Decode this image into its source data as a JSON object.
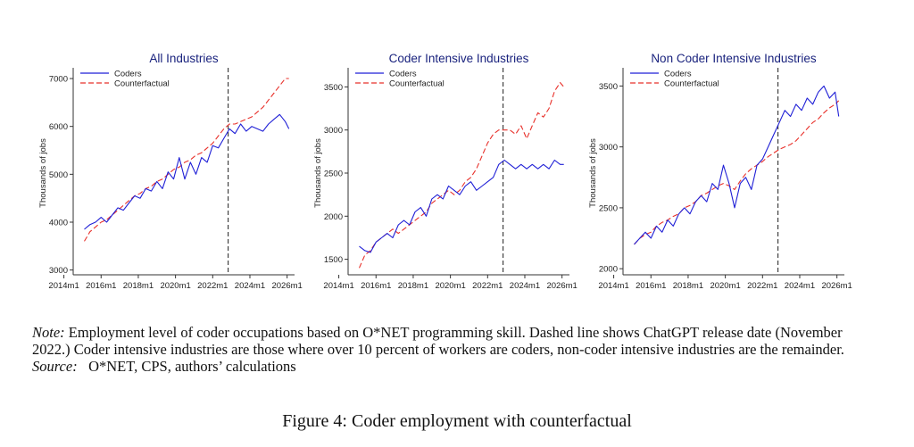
{
  "chart_data": [
    {
      "type": "line",
      "title": "All Industries",
      "ylabel": "Thousands of jobs",
      "xlim": [
        2014.5,
        2026.4
      ],
      "ylim": [
        2900,
        7150
      ],
      "yticks": [
        3000,
        4000,
        5000,
        6000,
        7000
      ],
      "xticks": [
        2014,
        2016,
        2018,
        2020,
        2022,
        2024,
        2026
      ],
      "xticklabels": [
        "2014m1",
        "2016m1",
        "2018m1",
        "2020m1",
        "2022m1",
        "2024m1",
        "2026m1"
      ],
      "vline": 2022.83,
      "legend": "top-left",
      "series": [
        {
          "name": "Coders",
          "color": "#1f1fd6",
          "dash": "",
          "points": [
            [
              2015.1,
              3850
            ],
            [
              2015.4,
              3950
            ],
            [
              2015.7,
              4000
            ],
            [
              2016.0,
              4100
            ],
            [
              2016.3,
              4000
            ],
            [
              2016.6,
              4150
            ],
            [
              2016.9,
              4300
            ],
            [
              2017.2,
              4250
            ],
            [
              2017.5,
              4400
            ],
            [
              2017.8,
              4550
            ],
            [
              2018.1,
              4500
            ],
            [
              2018.4,
              4700
            ],
            [
              2018.7,
              4650
            ],
            [
              2019.0,
              4850
            ],
            [
              2019.3,
              4700
            ],
            [
              2019.6,
              5050
            ],
            [
              2019.9,
              4900
            ],
            [
              2020.2,
              5350
            ],
            [
              2020.5,
              4900
            ],
            [
              2020.8,
              5250
            ],
            [
              2021.1,
              5000
            ],
            [
              2021.4,
              5350
            ],
            [
              2021.7,
              5250
            ],
            [
              2022.0,
              5600
            ],
            [
              2022.3,
              5550
            ],
            [
              2022.6,
              5750
            ],
            [
              2022.9,
              5950
            ],
            [
              2023.2,
              5850
            ],
            [
              2023.5,
              6050
            ],
            [
              2023.8,
              5900
            ],
            [
              2024.1,
              6000
            ],
            [
              2024.4,
              5950
            ],
            [
              2024.7,
              5900
            ],
            [
              2025.0,
              6050
            ],
            [
              2025.3,
              6150
            ],
            [
              2025.6,
              6250
            ],
            [
              2025.9,
              6100
            ],
            [
              2026.1,
              5950
            ]
          ]
        },
        {
          "name": "Counterfactual",
          "color": "#e8302a",
          "dash": "6,3",
          "points": [
            [
              2015.1,
              3600
            ],
            [
              2015.4,
              3800
            ],
            [
              2015.7,
              3900
            ],
            [
              2016.0,
              4000
            ],
            [
              2016.3,
              4050
            ],
            [
              2016.6,
              4150
            ],
            [
              2016.9,
              4250
            ],
            [
              2017.2,
              4350
            ],
            [
              2017.5,
              4450
            ],
            [
              2017.8,
              4550
            ],
            [
              2018.1,
              4600
            ],
            [
              2018.4,
              4700
            ],
            [
              2018.7,
              4750
            ],
            [
              2019.0,
              4850
            ],
            [
              2019.3,
              4900
            ],
            [
              2019.6,
              5000
            ],
            [
              2019.9,
              5100
            ],
            [
              2020.2,
              5150
            ],
            [
              2020.5,
              5250
            ],
            [
              2020.8,
              5300
            ],
            [
              2021.1,
              5400
            ],
            [
              2021.4,
              5450
            ],
            [
              2021.7,
              5550
            ],
            [
              2022.0,
              5650
            ],
            [
              2022.3,
              5800
            ],
            [
              2022.6,
              5950
            ],
            [
              2022.9,
              6050
            ],
            [
              2023.2,
              6050
            ],
            [
              2023.5,
              6100
            ],
            [
              2023.8,
              6150
            ],
            [
              2024.1,
              6200
            ],
            [
              2024.4,
              6300
            ],
            [
              2024.7,
              6400
            ],
            [
              2025.0,
              6550
            ],
            [
              2025.3,
              6700
            ],
            [
              2025.6,
              6850
            ],
            [
              2025.9,
              7000
            ],
            [
              2026.1,
              7000
            ]
          ]
        }
      ]
    },
    {
      "type": "line",
      "title": "Coder Intensive Industries",
      "ylabel": "Thousands of jobs",
      "xlim": [
        2014.5,
        2026.4
      ],
      "ylim": [
        1320,
        3680
      ],
      "yticks": [
        1500,
        2000,
        2500,
        3000,
        3500
      ],
      "xticks": [
        2014,
        2016,
        2018,
        2020,
        2022,
        2024,
        2026
      ],
      "xticklabels": [
        "2014m1",
        "2016m1",
        "2018m1",
        "2020m1",
        "2022m1",
        "2024m1",
        "2026m1"
      ],
      "vline": 2022.83,
      "legend": "top-left",
      "series": [
        {
          "name": "Coders",
          "color": "#1f1fd6",
          "dash": "",
          "points": [
            [
              2015.1,
              1650
            ],
            [
              2015.4,
              1600
            ],
            [
              2015.7,
              1580
            ],
            [
              2016.0,
              1700
            ],
            [
              2016.3,
              1750
            ],
            [
              2016.6,
              1800
            ],
            [
              2016.9,
              1750
            ],
            [
              2017.2,
              1900
            ],
            [
              2017.5,
              1950
            ],
            [
              2017.8,
              1900
            ],
            [
              2018.1,
              2050
            ],
            [
              2018.4,
              2100
            ],
            [
              2018.7,
              2000
            ],
            [
              2019.0,
              2200
            ],
            [
              2019.3,
              2250
            ],
            [
              2019.6,
              2200
            ],
            [
              2019.9,
              2350
            ],
            [
              2020.2,
              2300
            ],
            [
              2020.5,
              2250
            ],
            [
              2020.8,
              2350
            ],
            [
              2021.1,
              2400
            ],
            [
              2021.4,
              2300
            ],
            [
              2021.7,
              2350
            ],
            [
              2022.0,
              2400
            ],
            [
              2022.3,
              2450
            ],
            [
              2022.6,
              2600
            ],
            [
              2022.9,
              2650
            ],
            [
              2023.2,
              2600
            ],
            [
              2023.5,
              2550
            ],
            [
              2023.8,
              2600
            ],
            [
              2024.1,
              2550
            ],
            [
              2024.4,
              2600
            ],
            [
              2024.7,
              2550
            ],
            [
              2025.0,
              2600
            ],
            [
              2025.3,
              2550
            ],
            [
              2025.6,
              2650
            ],
            [
              2025.9,
              2600
            ],
            [
              2026.1,
              2600
            ]
          ]
        },
        {
          "name": "Counterfactual",
          "color": "#e8302a",
          "dash": "6,3",
          "points": [
            [
              2015.1,
              1400
            ],
            [
              2015.4,
              1550
            ],
            [
              2015.7,
              1600
            ],
            [
              2016.0,
              1700
            ],
            [
              2016.3,
              1750
            ],
            [
              2016.6,
              1800
            ],
            [
              2016.9,
              1850
            ],
            [
              2017.2,
              1800
            ],
            [
              2017.5,
              1850
            ],
            [
              2017.8,
              1900
            ],
            [
              2018.1,
              1950
            ],
            [
              2018.4,
              2000
            ],
            [
              2018.7,
              2050
            ],
            [
              2019.0,
              2150
            ],
            [
              2019.3,
              2200
            ],
            [
              2019.6,
              2250
            ],
            [
              2019.9,
              2300
            ],
            [
              2020.2,
              2250
            ],
            [
              2020.5,
              2300
            ],
            [
              2020.8,
              2400
            ],
            [
              2021.1,
              2450
            ],
            [
              2021.4,
              2550
            ],
            [
              2021.7,
              2700
            ],
            [
              2022.0,
              2850
            ],
            [
              2022.3,
              2950
            ],
            [
              2022.6,
              3000
            ],
            [
              2022.9,
              3000
            ],
            [
              2023.2,
              3000
            ],
            [
              2023.5,
              2950
            ],
            [
              2023.8,
              3050
            ],
            [
              2024.1,
              2900
            ],
            [
              2024.4,
              3050
            ],
            [
              2024.7,
              3200
            ],
            [
              2025.0,
              3150
            ],
            [
              2025.3,
              3250
            ],
            [
              2025.6,
              3450
            ],
            [
              2025.9,
              3550
            ],
            [
              2026.1,
              3500
            ]
          ]
        }
      ]
    },
    {
      "type": "line",
      "title": "Non Coder Intensive Industries",
      "ylabel": "Thousands of jobs",
      "xlim": [
        2014.5,
        2026.4
      ],
      "ylim": [
        1950,
        3620
      ],
      "yticks": [
        2000,
        2500,
        3000,
        3500
      ],
      "xticks": [
        2014,
        2016,
        2018,
        2020,
        2022,
        2024,
        2026
      ],
      "xticklabels": [
        "2014m1",
        "2016m1",
        "2018m1",
        "2020m1",
        "2022m1",
        "2024m1",
        "2026m1"
      ],
      "vline": 2022.83,
      "legend": "top-left",
      "series": [
        {
          "name": "Coders",
          "color": "#1f1fd6",
          "dash": "",
          "points": [
            [
              2015.1,
              2200
            ],
            [
              2015.4,
              2250
            ],
            [
              2015.7,
              2300
            ],
            [
              2016.0,
              2250
            ],
            [
              2016.3,
              2350
            ],
            [
              2016.6,
              2300
            ],
            [
              2016.9,
              2400
            ],
            [
              2017.2,
              2350
            ],
            [
              2017.5,
              2450
            ],
            [
              2017.8,
              2500
            ],
            [
              2018.1,
              2450
            ],
            [
              2018.4,
              2550
            ],
            [
              2018.7,
              2600
            ],
            [
              2019.0,
              2550
            ],
            [
              2019.3,
              2700
            ],
            [
              2019.6,
              2650
            ],
            [
              2019.9,
              2850
            ],
            [
              2020.2,
              2700
            ],
            [
              2020.5,
              2500
            ],
            [
              2020.8,
              2700
            ],
            [
              2021.1,
              2750
            ],
            [
              2021.4,
              2650
            ],
            [
              2021.7,
              2850
            ],
            [
              2022.0,
              2900
            ],
            [
              2022.3,
              3000
            ],
            [
              2022.6,
              3100
            ],
            [
              2022.9,
              3200
            ],
            [
              2023.2,
              3300
            ],
            [
              2023.5,
              3250
            ],
            [
              2023.8,
              3350
            ],
            [
              2024.1,
              3300
            ],
            [
              2024.4,
              3400
            ],
            [
              2024.7,
              3350
            ],
            [
              2025.0,
              3450
            ],
            [
              2025.3,
              3500
            ],
            [
              2025.6,
              3400
            ],
            [
              2025.9,
              3450
            ],
            [
              2026.1,
              3250
            ]
          ]
        },
        {
          "name": "Counterfactual",
          "color": "#e8302a",
          "dash": "6,3",
          "points": [
            [
              2015.1,
              2200
            ],
            [
              2015.4,
              2250
            ],
            [
              2015.7,
              2280
            ],
            [
              2016.0,
              2300
            ],
            [
              2016.3,
              2350
            ],
            [
              2016.6,
              2380
            ],
            [
              2016.9,
              2400
            ],
            [
              2017.2,
              2430
            ],
            [
              2017.5,
              2450
            ],
            [
              2017.8,
              2500
            ],
            [
              2018.1,
              2520
            ],
            [
              2018.4,
              2550
            ],
            [
              2018.7,
              2600
            ],
            [
              2019.0,
              2620
            ],
            [
              2019.3,
              2650
            ],
            [
              2019.6,
              2680
            ],
            [
              2019.9,
              2700
            ],
            [
              2020.2,
              2680
            ],
            [
              2020.5,
              2650
            ],
            [
              2020.8,
              2720
            ],
            [
              2021.1,
              2780
            ],
            [
              2021.4,
              2820
            ],
            [
              2021.7,
              2850
            ],
            [
              2022.0,
              2880
            ],
            [
              2022.3,
              2920
            ],
            [
              2022.6,
              2950
            ],
            [
              2022.9,
              2980
            ],
            [
              2023.2,
              3000
            ],
            [
              2023.5,
              3020
            ],
            [
              2023.8,
              3050
            ],
            [
              2024.1,
              3100
            ],
            [
              2024.4,
              3150
            ],
            [
              2024.7,
              3200
            ],
            [
              2025.0,
              3230
            ],
            [
              2025.3,
              3280
            ],
            [
              2025.6,
              3320
            ],
            [
              2025.9,
              3350
            ],
            [
              2026.1,
              3380
            ]
          ]
        }
      ]
    }
  ],
  "note": {
    "label": "Note:",
    "text": "Employment level of coder occupations based on O*NET programming skill. Dashed line shows ChatGPT release date (November 2022.) Coder intensive industries are those where over 10 percent of workers are coders, non-coder intensive industries are the remainder."
  },
  "source": {
    "label": "Source:",
    "text": "O*NET, CPS, authors’ calculations"
  },
  "caption": "Figure 4: Coder employment with counterfactual"
}
